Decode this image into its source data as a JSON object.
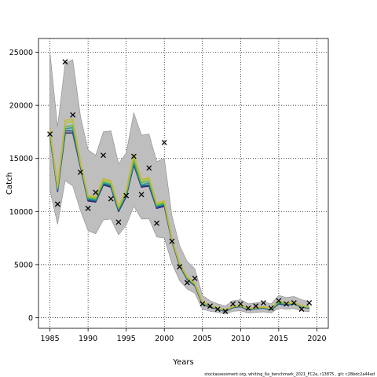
{
  "chart_data": {
    "type": "line",
    "xlabel": "Years",
    "ylabel": "Catch",
    "xlim": [
      1983.5,
      2021.5
    ],
    "ylim": [
      -1000,
      26300
    ],
    "x_ticks": [
      1985,
      1990,
      1995,
      2000,
      2005,
      2010,
      2015,
      2020
    ],
    "y_ticks": [
      0,
      5000,
      10000,
      15000,
      20000,
      25000
    ],
    "x_tick_labels": [
      "1985",
      "1990",
      "1995",
      "2000",
      "2005",
      "2010",
      "2015",
      "2020"
    ],
    "y_tick_labels": [
      "0",
      "5000",
      "10000",
      "15000",
      "20000",
      "25000"
    ],
    "grid": true,
    "years": [
      1985,
      1986,
      1987,
      1988,
      1989,
      1990,
      1991,
      1992,
      1993,
      1994,
      1995,
      1996,
      1997,
      1998,
      1999,
      2000,
      2001,
      2002,
      2003,
      2004,
      2005,
      2006,
      2007,
      2008,
      2009,
      2010,
      2011,
      2012,
      2013,
      2014,
      2015,
      2016,
      2017,
      2018,
      2019
    ],
    "band": {
      "upper": [
        25000,
        18000,
        24000,
        24300,
        19000,
        15800,
        15300,
        17500,
        17600,
        14500,
        15500,
        19300,
        17200,
        17300,
        14700,
        15000,
        9600,
        6800,
        5300,
        4600,
        2100,
        1600,
        1300,
        1100,
        1600,
        1700,
        1300,
        1400,
        1500,
        1300,
        2100,
        1900,
        2000,
        1700,
        1500
      ],
      "lower": [
        12000,
        8800,
        12900,
        12400,
        10100,
        8200,
        7900,
        9200,
        9300,
        7800,
        8700,
        10500,
        9300,
        9300,
        7600,
        7500,
        5100,
        3500,
        2700,
        2300,
        800,
        600,
        500,
        350,
        600,
        650,
        450,
        500,
        550,
        450,
        900,
        800,
        850,
        650,
        550
      ]
    },
    "series": [
      {
        "values": [
          17200,
          11900,
          17400,
          17400,
          14200,
          11000,
          10900,
          12500,
          12300,
          10000,
          11400,
          14400,
          12300,
          12400,
          10300,
          10500,
          7200,
          4900,
          3600,
          3000,
          1300,
          1000,
          800,
          600,
          950,
          1050,
          750,
          850,
          900,
          750,
          1300,
          1200,
          1300,
          1000,
          900
        ],
        "color": "#3b1f73"
      },
      {
        "values": [
          17300,
          12000,
          17600,
          17600,
          14300,
          11100,
          11000,
          12600,
          12400,
          10100,
          11500,
          14500,
          12400,
          12500,
          10400,
          10600,
          7250,
          4950,
          3650,
          3050,
          1350,
          1050,
          820,
          620,
          970,
          1070,
          770,
          870,
          920,
          770,
          1330,
          1230,
          1320,
          1020,
          920
        ],
        "color": "#1e5f8c"
      },
      {
        "values": [
          17400,
          12100,
          17800,
          17900,
          14400,
          11200,
          11100,
          12700,
          12500,
          10200,
          11600,
          14700,
          12500,
          12700,
          10500,
          10700,
          7300,
          5000,
          3700,
          3100,
          1380,
          1080,
          850,
          650,
          1000,
          1100,
          800,
          900,
          950,
          800,
          1400,
          1280,
          1350,
          1050,
          950
        ],
        "color": "#2a9a8a"
      },
      {
        "values": [
          17500,
          12200,
          18000,
          18100,
          14500,
          11300,
          11200,
          12800,
          12600,
          10300,
          11700,
          14900,
          12700,
          12900,
          10600,
          10800,
          7350,
          5050,
          3750,
          3150,
          1400,
          1100,
          870,
          670,
          1030,
          1130,
          830,
          930,
          980,
          830,
          1500,
          1300,
          1380,
          1080,
          980
        ],
        "color": "#5ab85a"
      },
      {
        "values": [
          17700,
          12300,
          18400,
          18500,
          14600,
          11400,
          11300,
          13000,
          12800,
          10400,
          11900,
          15200,
          12900,
          13100,
          10700,
          10900,
          7400,
          5100,
          3800,
          3200,
          1450,
          1130,
          900,
          700,
          1050,
          1150,
          850,
          950,
          1000,
          850,
          1550,
          1350,
          1420,
          1100,
          1000
        ],
        "color": "#a3c92a"
      },
      {
        "values": [
          17800,
          12400,
          18600,
          18700,
          14700,
          11500,
          11400,
          13100,
          12900,
          10500,
          12000,
          15400,
          13000,
          13200,
          10800,
          11000,
          7450,
          5150,
          3850,
          3250,
          1480,
          1150,
          920,
          720,
          1080,
          1180,
          870,
          970,
          1020,
          870,
          1600,
          1380,
          1450,
          1120,
          1020
        ],
        "color": "#c9b640"
      }
    ],
    "observed": [
      17300,
      10700,
      24100,
      19100,
      13700,
      10300,
      11800,
      15300,
      11200,
      9000,
      11500,
      15200,
      11600,
      14100,
      8900,
      16500,
      7200,
      4800,
      3300,
      3700,
      1300,
      1100,
      800,
      600,
      1300,
      1300,
      900,
      1100,
      1400,
      900,
      1600,
      1300,
      1400,
      800,
      1400
    ],
    "band_color": "#bebebe",
    "observed_marker": "x",
    "footer": "stockassessment.org, whiting_6a_benchmark_2021_FC2a, r13875 , git: c28bdc2a44ad"
  }
}
